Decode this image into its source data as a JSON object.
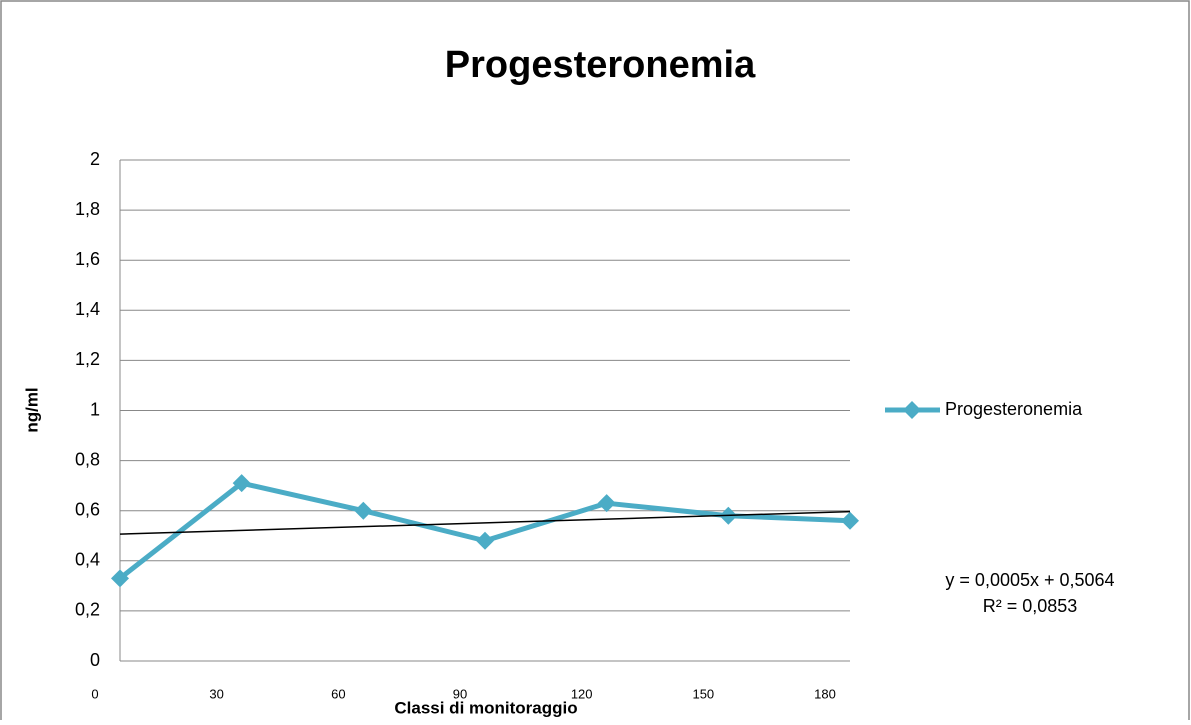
{
  "chart_data": {
    "type": "line",
    "title": "Progesteronemia",
    "xlabel": "Classi di monitoraggio",
    "ylabel": "ng/ml",
    "x": [
      0,
      30,
      60,
      90,
      120,
      150,
      180
    ],
    "series": [
      {
        "name": "Progesteronemia",
        "color": "#4bacc6",
        "values": [
          0.33,
          0.71,
          0.6,
          0.48,
          0.63,
          0.58,
          0.56
        ]
      }
    ],
    "xlim": [
      0,
      180
    ],
    "xticks": [
      0,
      30,
      60,
      90,
      120,
      150,
      180
    ],
    "ylim": [
      0,
      2
    ],
    "yticks": [
      0,
      {
        "value": 0.2,
        "label": "0,2"
      },
      {
        "value": 0.4,
        "label": "0,4"
      },
      {
        "value": 0.6,
        "label": "0,6"
      },
      {
        "value": 0.8,
        "label": "0,8"
      },
      1,
      {
        "value": 1.2,
        "label": "1,2"
      },
      {
        "value": 1.4,
        "label": "1,4"
      },
      {
        "value": 1.6,
        "label": "1,6"
      },
      {
        "value": 1.8,
        "label": "1,8"
      },
      2
    ],
    "grid": true,
    "legend": "right",
    "trendline": {
      "equation": "y = 0,0005x + 0,5064",
      "r_squared": "R² = 0,0853",
      "slope": 0.0005,
      "intercept": 0.5064,
      "color": "#000000"
    }
  }
}
